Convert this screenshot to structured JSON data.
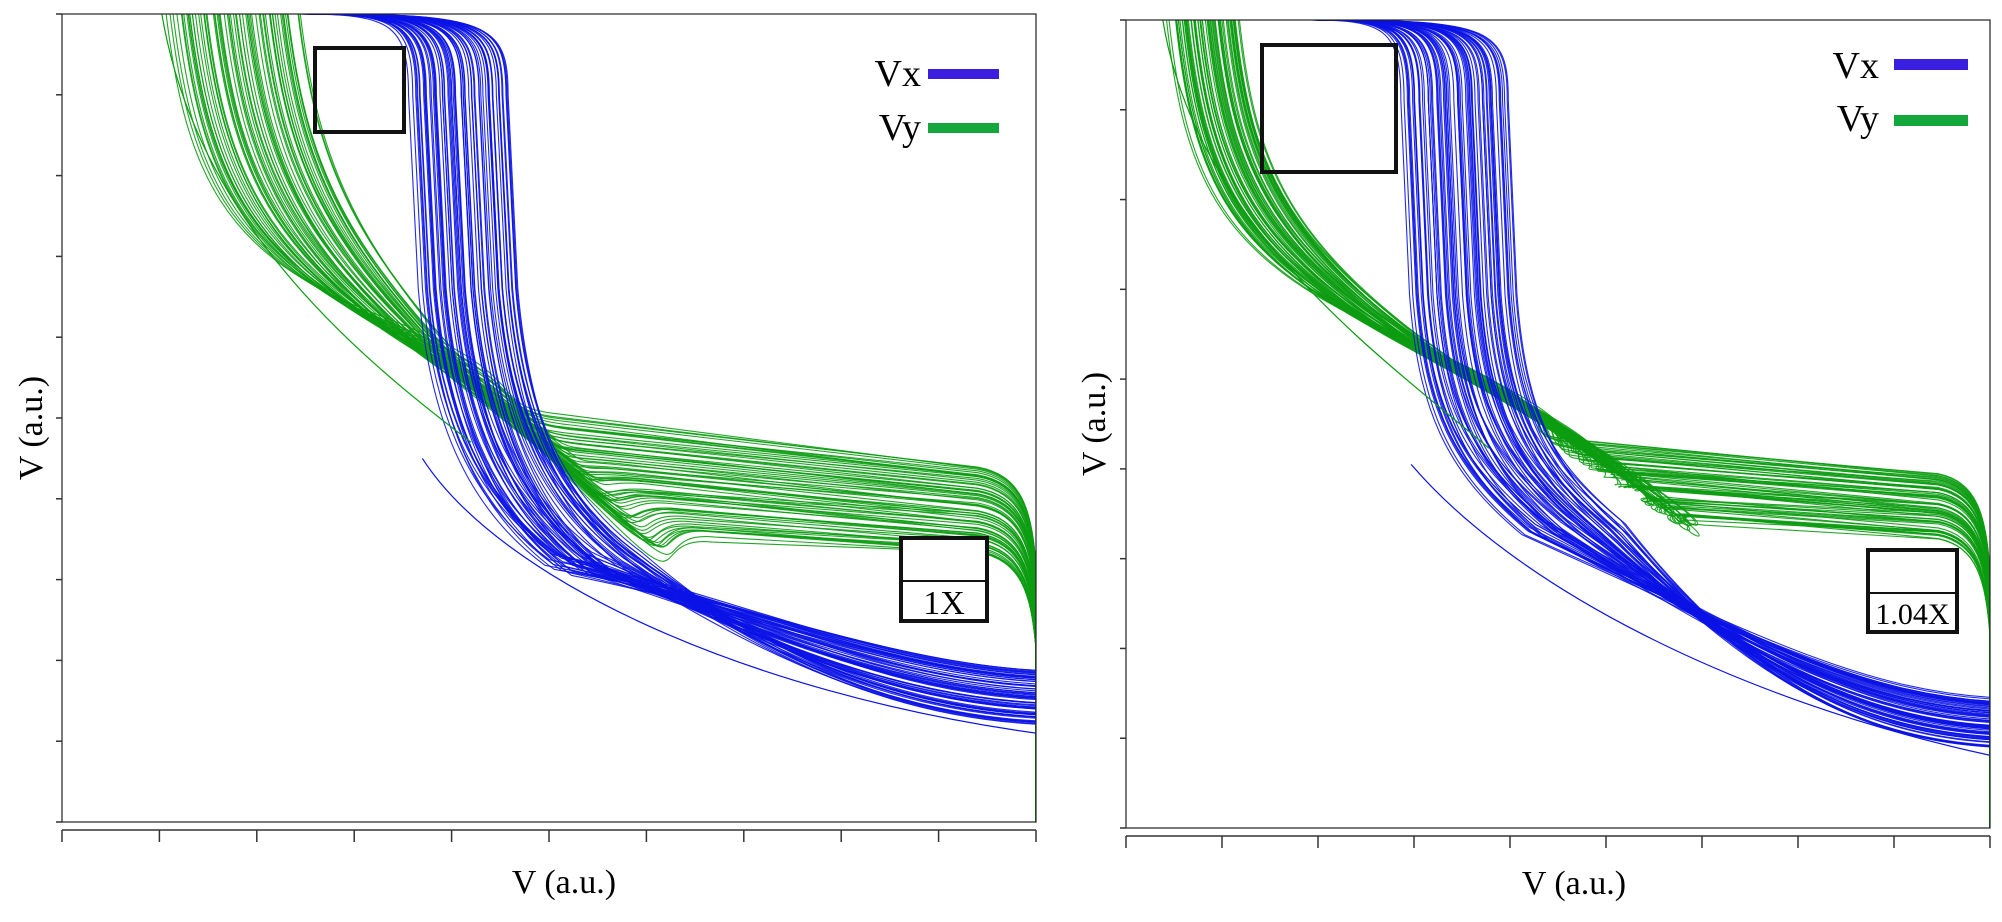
{
  "chart_data": [
    {
      "type": "line",
      "title": "",
      "xlabel": "V (a.u.)",
      "ylabel": "V (a.u.)",
      "xlim": [
        0,
        1
      ],
      "ylim": [
        0,
        1
      ],
      "x_ticks": 10,
      "y_ticks": 10,
      "grid": false,
      "legend_position": "top-right",
      "legend": [
        {
          "name": "Vx",
          "color": "#3b1fe0"
        },
        {
          "name": "Vy",
          "color": "#14a83c"
        }
      ],
      "series": [
        {
          "name": "Vx",
          "color": "#0b13e6",
          "band": {
            "x_start": 0.3,
            "x_knee": 0.44,
            "y_knee": 0.4,
            "x_upper_end": 1.0,
            "y_upper_end": 0.19,
            "x_lower_end": 1.0,
            "y_lower_end": 0.12,
            "inner_start": 0.36,
            "inner_spread": 0.1
          }
        },
        {
          "name": "Vy",
          "color": "#0c9c12",
          "band": {
            "x_start_outer": 0.11,
            "x_start_inner": 0.24,
            "x_plateau": 0.55,
            "y_plateau_top": 0.5,
            "y_plateau_bottom": 0.35,
            "x_end": 1.0,
            "y_end_top": 0.44,
            "y_end_bottom": 0.33
          }
        }
      ],
      "annotations": [
        {
          "name": "upper-square",
          "text": ""
        },
        {
          "name": "lower-square",
          "text": "1X"
        }
      ]
    },
    {
      "type": "line",
      "title": "",
      "xlabel": "V (a.u.)",
      "ylabel": "V (a.u.)",
      "xlim": [
        0,
        1
      ],
      "ylim": [
        0,
        1
      ],
      "x_ticks": 9,
      "y_ticks": 9,
      "grid": false,
      "legend_position": "top-right",
      "legend": [
        {
          "name": "Vx",
          "color": "#3b1fe0"
        },
        {
          "name": "Vy",
          "color": "#14a83c"
        }
      ],
      "series": [
        {
          "name": "Vx",
          "color": "#0b13e6",
          "band": {
            "x_start": 0.27,
            "x_knee": 0.44,
            "y_knee": 0.45,
            "x_upper_end": 1.0,
            "y_upper_end": 0.16,
            "x_lower_end": 1.0,
            "y_lower_end": 0.1,
            "inner_start": 0.32,
            "inner_spread": 0.12
          }
        },
        {
          "name": "Vy",
          "color": "#0c9c12",
          "band": {
            "x_start_outer": 0.05,
            "x_start_inner": 0.13,
            "x_plateau": 0.55,
            "y_plateau_top": 0.48,
            "y_plateau_bottom": 0.38,
            "x_end": 1.0,
            "y_end_top": 0.44,
            "y_end_bottom": 0.36
          }
        }
      ],
      "annotations": [
        {
          "name": "upper-square",
          "text": ""
        },
        {
          "name": "lower-square",
          "text": "1.04X"
        }
      ]
    }
  ]
}
